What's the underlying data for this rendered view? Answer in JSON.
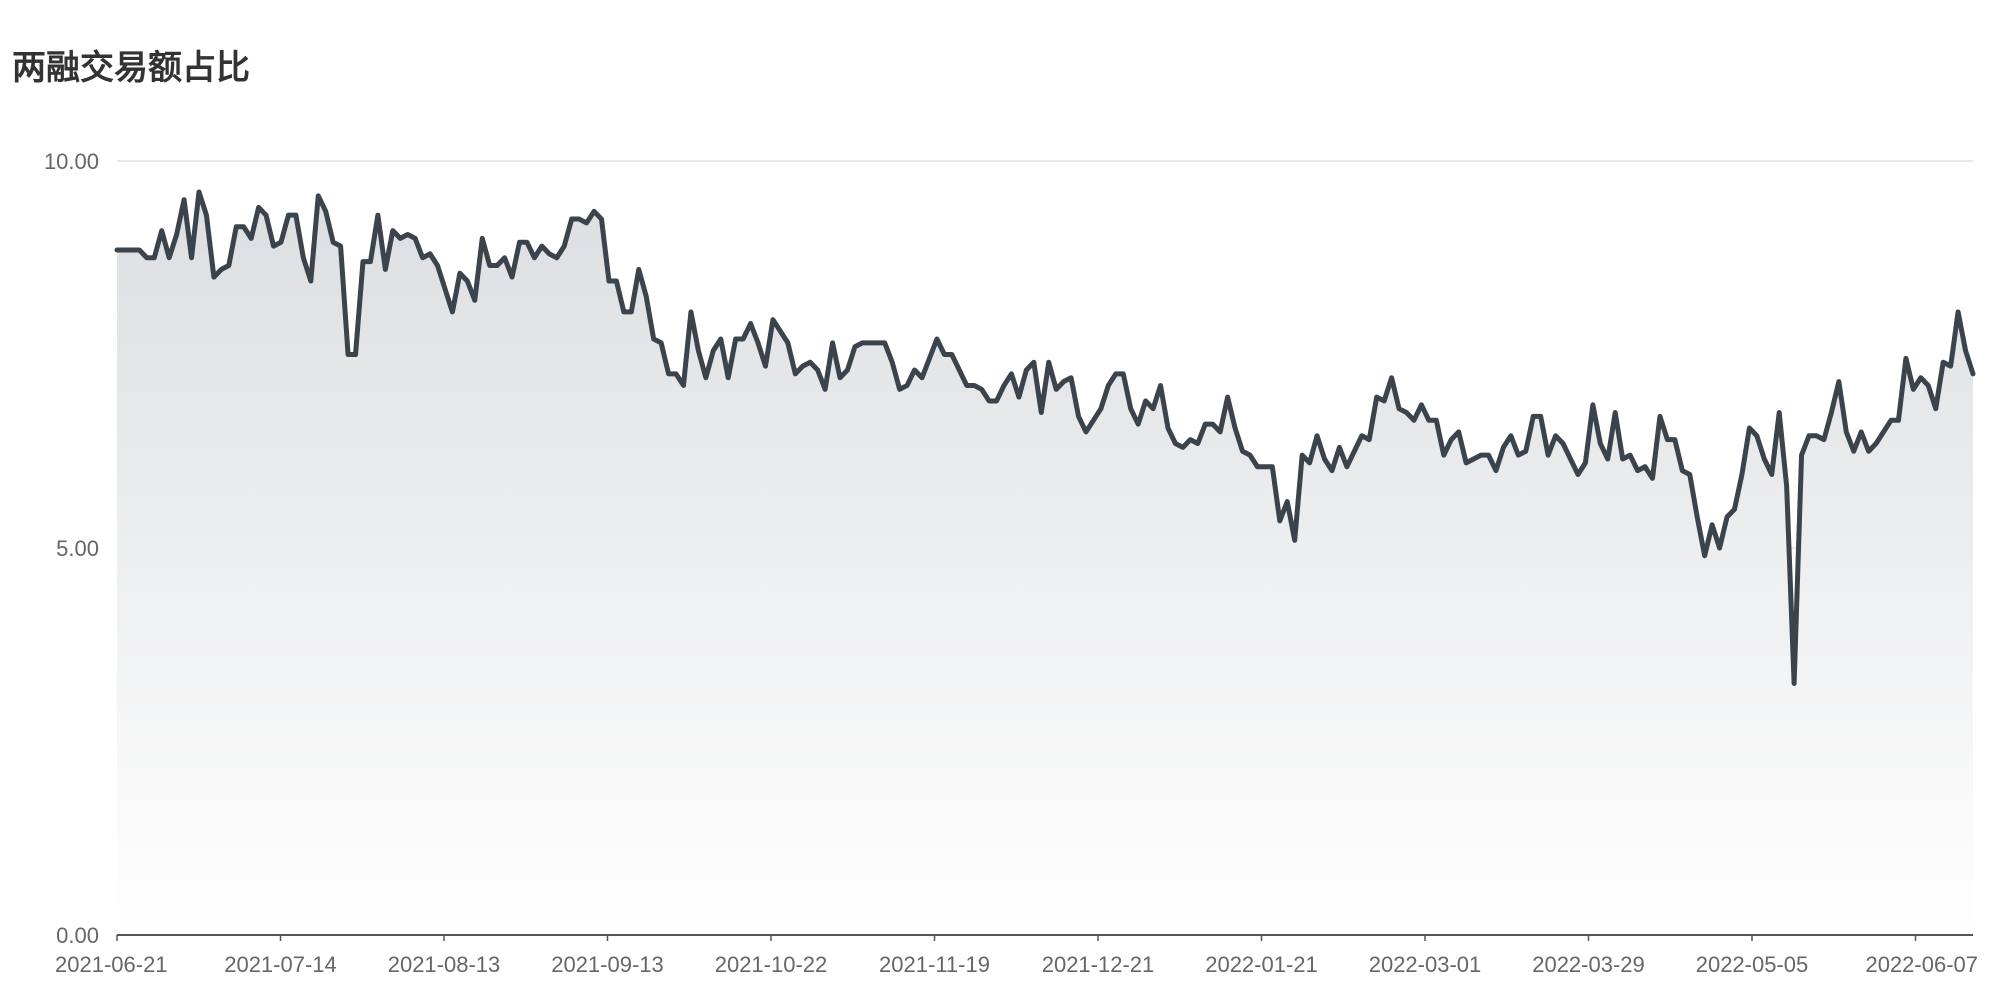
{
  "chart_data": {
    "type": "area",
    "title": "两融交易额占比",
    "xlabel": "",
    "ylabel": "",
    "ylim": [
      0,
      10
    ],
    "y_ticks": [
      "0.00",
      "5.00",
      "10.00"
    ],
    "x_ticks": [
      "2021-06-21",
      "2021-07-14",
      "2021-08-13",
      "2021-09-13",
      "2021-10-22",
      "2021-11-19",
      "2021-12-21",
      "2022-01-21",
      "2022-03-01",
      "2022-03-29",
      "2022-05-05",
      "2022-06-07"
    ],
    "grid": true,
    "legend": "none",
    "colors": {
      "line": "#3b434c",
      "fill_top": "#dcdee1",
      "fill_bottom": "#ffffff",
      "grid": "#e0e0e6",
      "axis": "#555555"
    },
    "series": [
      {
        "values": [
          8.85,
          8.85,
          8.85,
          8.85,
          8.75,
          8.75,
          9.1,
          8.75,
          9.05,
          9.5,
          8.75,
          9.6,
          9.3,
          8.5,
          8.6,
          8.65,
          9.15,
          9.15,
          9.0,
          9.4,
          9.3,
          8.9,
          8.95,
          9.3,
          9.3,
          8.75,
          8.45,
          9.55,
          9.35,
          8.95,
          8.9,
          7.5,
          7.5,
          8.7,
          8.7,
          9.3,
          8.6,
          9.1,
          9.0,
          9.05,
          9.0,
          8.75,
          8.8,
          8.65,
          8.35,
          8.05,
          8.55,
          8.45,
          8.2,
          9.0,
          8.65,
          8.65,
          8.75,
          8.5,
          8.95,
          8.95,
          8.75,
          8.9,
          8.8,
          8.75,
          8.9,
          9.25,
          9.25,
          9.2,
          9.35,
          9.25,
          8.45,
          8.45,
          8.05,
          8.05,
          8.6,
          8.25,
          7.7,
          7.65,
          7.25,
          7.25,
          7.1,
          8.05,
          7.55,
          7.2,
          7.55,
          7.7,
          7.2,
          7.7,
          7.7,
          7.9,
          7.65,
          7.35,
          7.95,
          7.8,
          7.65,
          7.25,
          7.35,
          7.4,
          7.3,
          7.05,
          7.65,
          7.2,
          7.3,
          7.6,
          7.65,
          7.65,
          7.65,
          7.65,
          7.4,
          7.05,
          7.1,
          7.3,
          7.2,
          7.45,
          7.7,
          7.5,
          7.5,
          7.3,
          7.1,
          7.1,
          7.05,
          6.9,
          6.9,
          7.1,
          7.25,
          6.95,
          7.3,
          7.4,
          6.75,
          7.4,
          7.05,
          7.15,
          7.2,
          6.7,
          6.5,
          6.65,
          6.8,
          7.1,
          7.25,
          7.25,
          6.8,
          6.6,
          6.9,
          6.8,
          7.1,
          6.55,
          6.35,
          6.3,
          6.4,
          6.35,
          6.6,
          6.6,
          6.5,
          6.95,
          6.55,
          6.25,
          6.2,
          6.05,
          6.05,
          6.05,
          5.35,
          5.6,
          5.1,
          6.2,
          6.1,
          6.45,
          6.15,
          6.0,
          6.3,
          6.05,
          6.25,
          6.45,
          6.4,
          6.95,
          6.9,
          7.2,
          6.8,
          6.75,
          6.65,
          6.85,
          6.65,
          6.65,
          6.2,
          6.4,
          6.5,
          6.1,
          6.15,
          6.2,
          6.2,
          6.0,
          6.3,
          6.45,
          6.2,
          6.25,
          6.7,
          6.7,
          6.2,
          6.45,
          6.35,
          6.15,
          5.95,
          6.1,
          6.85,
          6.35,
          6.15,
          6.75,
          6.15,
          6.2,
          6.0,
          6.05,
          5.9,
          6.7,
          6.4,
          6.4,
          6.0,
          5.95,
          5.4,
          4.9,
          5.3,
          5.0,
          5.4,
          5.5,
          5.95,
          6.55,
          6.45,
          6.15,
          5.95,
          6.75,
          5.8,
          3.25,
          6.2,
          6.45,
          6.45,
          6.4,
          6.75,
          7.15,
          6.5,
          6.25,
          6.5,
          6.25,
          6.35,
          6.5,
          6.65,
          6.65,
          7.45,
          7.05,
          7.2,
          7.1,
          6.8,
          7.4,
          7.35,
          8.05,
          7.55,
          7.25
        ]
      }
    ]
  }
}
